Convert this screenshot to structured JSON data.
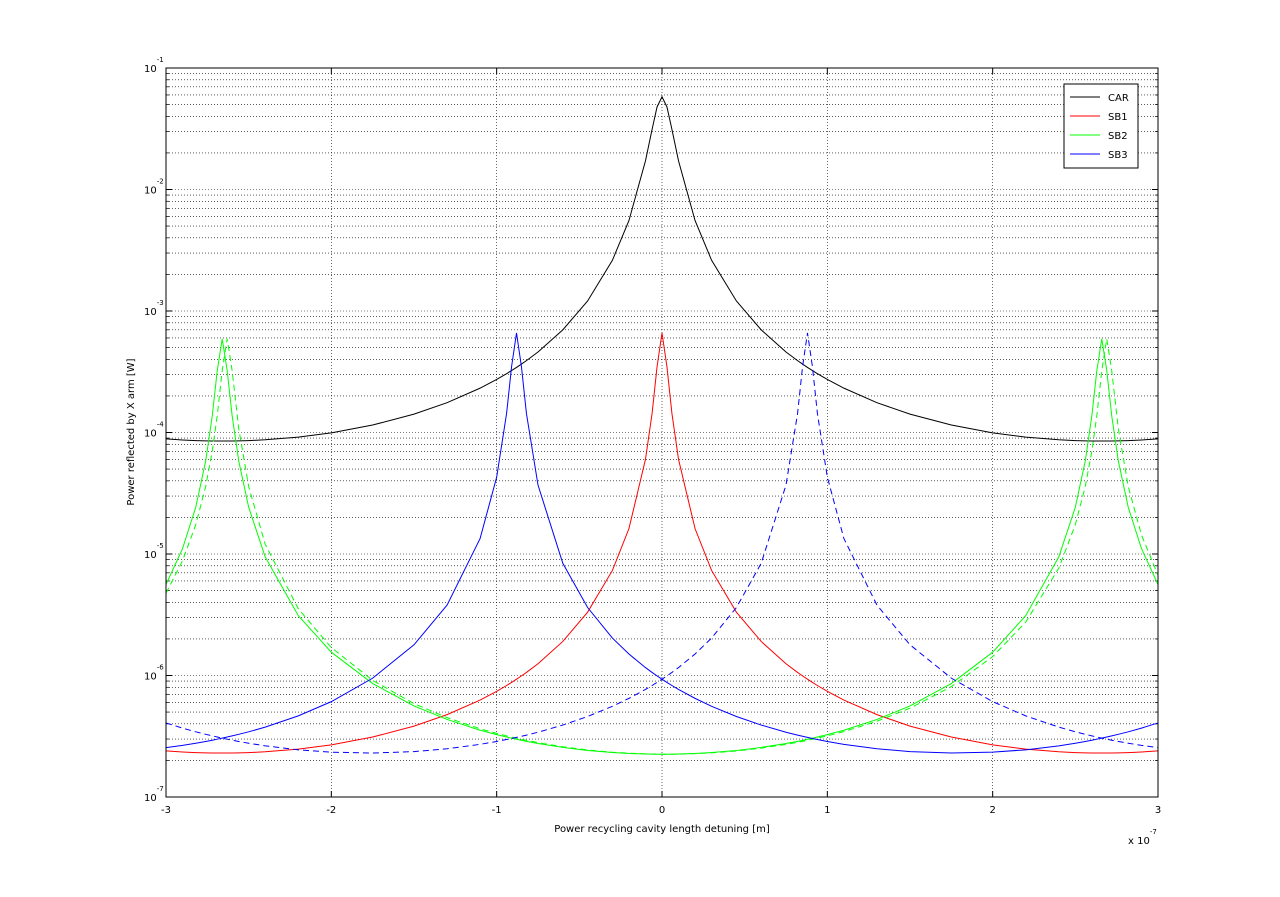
{
  "chart_data": {
    "type": "line",
    "xlabel": "Power recycling cavity length detuning [m]",
    "ylabel": "Power reflected by X arm [W]",
    "x_multiplier": {
      "base": "x 10",
      "exponent": "-7"
    },
    "x": [
      -3,
      -2.9,
      -2.82,
      -2.76,
      -2.72,
      -2.69,
      -2.66,
      -2.63,
      -2.6,
      -2.56,
      -2.5,
      -2.4,
      -2.2,
      -2,
      -1.75,
      -1.5,
      -1.3,
      -1.1,
      -1,
      -0.94,
      -0.91,
      -0.88,
      -0.85,
      -0.82,
      -0.75,
      -0.6,
      -0.45,
      -0.3,
      -0.2,
      -0.1,
      -0.06,
      -0.03,
      0,
      0.03,
      0.06,
      0.1,
      0.2,
      0.3,
      0.45,
      0.6,
      0.75,
      0.82,
      0.85,
      0.88,
      0.91,
      0.94,
      1,
      1.1,
      1.3,
      1.5,
      1.75,
      2,
      2.2,
      2.4,
      2.5,
      2.56,
      2.6,
      2.63,
      2.66,
      2.69,
      2.72,
      2.76,
      2.82,
      2.9,
      3
    ],
    "xlim": [
      -3,
      3
    ],
    "xticks": [
      -3,
      -2,
      -1,
      0,
      1,
      2,
      3
    ],
    "ylim": [
      1e-07,
      0.1
    ],
    "yscale": "log",
    "yticks": [
      {
        "value": 1e-07,
        "label": "10",
        "exponent": "-7"
      },
      {
        "value": 1e-06,
        "label": "10",
        "exponent": "-6"
      },
      {
        "value": 1e-05,
        "label": "10",
        "exponent": "-5"
      },
      {
        "value": 0.0001,
        "label": "10",
        "exponent": "-4"
      },
      {
        "value": 0.001,
        "label": "10",
        "exponent": "-3"
      },
      {
        "value": 0.01,
        "label": "10",
        "exponent": "-2"
      },
      {
        "value": 0.1,
        "label": "10",
        "exponent": "-1"
      }
    ],
    "yminorticks": [
      2e-07,
      3e-07,
      4e-07,
      5e-07,
      6e-07,
      7e-07,
      8e-07,
      9e-07,
      2e-06,
      3e-06,
      4e-06,
      5e-06,
      6e-06,
      7e-06,
      8e-06,
      9e-06,
      2e-05,
      3e-05,
      4e-05,
      5e-05,
      6e-05,
      7e-05,
      8e-05,
      9e-05,
      0.0002,
      0.0003,
      0.0004,
      0.0005,
      0.0006,
      0.0007,
      0.0008,
      0.0009,
      0.002,
      0.003,
      0.004,
      0.005,
      0.006,
      0.007,
      0.008,
      0.009,
      0.02,
      0.03,
      0.04,
      0.05,
      0.06,
      0.07,
      0.08,
      0.09
    ],
    "grid": true,
    "legend": "top-right",
    "series": [
      {
        "name": "CAR",
        "color": "#000000",
        "dash": false,
        "values": [
          8.856e-05,
          8.679e-05,
          8.581e-05,
          8.536e-05,
          8.517e-05,
          8.508e-05,
          8.504e-05,
          8.508e-05,
          8.517e-05,
          8.536e-05,
          8.581e-05,
          8.709e-05,
          9.158e-05,
          9.937e-05,
          0.0001152,
          0.0001416,
          0.000176,
          0.0002318,
          0.0002735,
          0.0003051,
          0.0003233,
          0.0003434,
          0.0003657,
          0.0003903,
          0.00046,
          0.0006995,
          0.001209,
          0.002616,
          0.005549,
          0.0172,
          0.03127,
          0.04778,
          0.058,
          0.04778,
          0.03127,
          0.0172,
          0.005549,
          0.002616,
          0.001209,
          0.0006995,
          0.00046,
          0.0003903,
          0.0003657,
          0.0003434,
          0.0003233,
          0.0003051,
          0.0002735,
          0.0002318,
          0.000176,
          0.0001416,
          0.0001152,
          9.937e-05,
          9.158e-05,
          8.709e-05,
          8.581e-05,
          8.536e-05,
          8.517e-05,
          8.508e-05,
          8.504e-05,
          8.508e-05,
          8.517e-05,
          8.536e-05,
          8.581e-05,
          8.679e-05,
          8.856e-05
        ]
      },
      {
        "name": "SB1",
        "color": "#ff0000",
        "dash": false,
        "values": [
          2.395e-07,
          2.347e-07,
          2.321e-07,
          2.308e-07,
          2.303e-07,
          2.301e-07,
          2.3e-07,
          2.301e-07,
          2.303e-07,
          2.308e-07,
          2.321e-07,
          2.355e-07,
          2.477e-07,
          2.688e-07,
          3.115e-07,
          3.833e-07,
          4.764e-07,
          6.281e-07,
          7.412e-07,
          8.274e-07,
          8.772e-07,
          9.319e-07,
          9.926e-07,
          1.06e-06,
          1.25e-06,
          1.907e-06,
          3.32e-06,
          7.32e-06,
          1.617e-05,
          6.005e-05,
          0.0001434,
          0.0003472,
          0.00066,
          0.0003472,
          0.0001434,
          6.005e-05,
          1.617e-05,
          7.32e-06,
          3.32e-06,
          1.907e-06,
          1.25e-06,
          1.06e-06,
          9.926e-07,
          9.319e-07,
          8.772e-07,
          8.274e-07,
          7.412e-07,
          6.281e-07,
          4.764e-07,
          3.833e-07,
          3.115e-07,
          2.688e-07,
          2.477e-07,
          2.355e-07,
          2.321e-07,
          2.308e-07,
          2.303e-07,
          2.301e-07,
          2.3e-07,
          2.301e-07,
          2.303e-07,
          2.308e-07,
          2.321e-07,
          2.347e-07,
          2.395e-07
        ]
      },
      {
        "name": "SB2",
        "color": "#00ff00",
        "dash": false,
        "values": [
          5.608e-06,
          1.108e-05,
          2.425e-05,
          5.825e-05,
          0.0001376,
          0.0003236,
          0.00059,
          0.0003236,
          0.0001376,
          5.825e-05,
          2.425e-05,
          9.473e-06,
          3.11e-06,
          1.555e-06,
          8.583e-07,
          5.618e-07,
          4.347e-07,
          3.545e-07,
          3.262e-07,
          3.116e-07,
          3.048e-07,
          2.987e-07,
          2.927e-07,
          2.871e-07,
          2.756e-07,
          2.558e-07,
          2.415e-07,
          2.323e-07,
          2.282e-07,
          2.258e-07,
          2.253e-07,
          2.251e-07,
          2.25e-07,
          2.251e-07,
          2.253e-07,
          2.258e-07,
          2.282e-07,
          2.323e-07,
          2.415e-07,
          2.558e-07,
          2.756e-07,
          2.871e-07,
          2.927e-07,
          2.987e-07,
          3.048e-07,
          3.116e-07,
          3.262e-07,
          3.545e-07,
          4.347e-07,
          5.618e-07,
          8.583e-07,
          1.555e-06,
          3.11e-06,
          9.473e-06,
          2.425e-05,
          5.825e-05,
          0.0001376,
          0.0003236,
          0.00059,
          0.0003236,
          0.0001376,
          5.825e-05,
          2.425e-05,
          1.108e-05,
          5.608e-06
        ]
      },
      {
        "color": "#00ff00",
        "dash": true,
        "values": [
          4.75e-06,
          8.803e-06,
          1.742e-05,
          3.595e-05,
          7.026e-05,
          0.0001376,
          0.0003236,
          0.00059,
          0.0003236,
          0.0001077,
          3.595e-05,
          1.203e-05,
          3.546e-06,
          1.699e-06,
          9.118e-07,
          5.872e-07,
          4.499e-07,
          3.644e-07,
          3.338e-07,
          3.188e-07,
          3.116e-07,
          3.048e-07,
          2.987e-07,
          2.927e-07,
          2.803e-07,
          2.593e-07,
          2.44e-07,
          2.338e-07,
          2.293e-07,
          2.264e-07,
          2.257e-07,
          2.253e-07,
          2.251e-07,
          2.25e-07,
          2.251e-07,
          2.254e-07,
          2.273e-07,
          2.308e-07,
          2.392e-07,
          2.525e-07,
          2.711e-07,
          2.819e-07,
          2.871e-07,
          2.927e-07,
          2.987e-07,
          3.048e-07,
          3.188e-07,
          3.453e-07,
          4.203e-07,
          5.383e-07,
          8.094e-07,
          1.43e-06,
          2.753e-06,
          7.651e-06,
          1.742e-05,
          3.595e-05,
          7.026e-05,
          0.0001376,
          0.0003236,
          0.00059,
          0.0003236,
          0.0001077,
          3.595e-05,
          1.436e-05,
          6.711e-06
        ]
      },
      {
        "name": "SB3",
        "color": "#0000ff",
        "dash": false,
        "values": [
          2.55e-07,
          2.662e-07,
          2.771e-07,
          2.865e-07,
          2.934e-07,
          2.991e-07,
          3.052e-07,
          3.115e-07,
          3.185e-07,
          3.28e-07,
          3.44e-07,
          3.76e-07,
          4.651e-07,
          6.093e-07,
          9.512e-07,
          1.79e-06,
          3.795e-06,
          1.343e-05,
          4.291e-05,
          0.0001434,
          0.0003472,
          0.00066,
          0.0003472,
          0.0001434,
          3.693e-05,
          8.384e-06,
          3.626e-06,
          2.033e-06,
          1.503e-06,
          1.162e-06,
          1.06e-06,
          9.926e-07,
          9.319e-07,
          8.772e-07,
          8.274e-07,
          7.683e-07,
          6.483e-07,
          5.58e-07,
          4.598e-07,
          3.909e-07,
          3.412e-07,
          3.231e-07,
          3.162e-07,
          3.094e-07,
          3.032e-07,
          2.973e-07,
          2.865e-07,
          2.713e-07,
          2.494e-07,
          2.364e-07,
          2.301e-07,
          2.339e-07,
          2.445e-07,
          2.638e-07,
          2.771e-07,
          2.865e-07,
          2.934e-07,
          2.991e-07,
          3.052e-07,
          3.115e-07,
          3.185e-07,
          3.28e-07,
          3.44e-07,
          3.689e-07,
          4.071e-07
        ]
      },
      {
        "color": "#0000ff",
        "dash": true,
        "values": [
          4.071e-07,
          3.689e-07,
          3.44e-07,
          3.28e-07,
          3.185e-07,
          3.115e-07,
          3.052e-07,
          2.991e-07,
          2.934e-07,
          2.865e-07,
          2.771e-07,
          2.638e-07,
          2.445e-07,
          2.339e-07,
          2.301e-07,
          2.364e-07,
          2.494e-07,
          2.713e-07,
          2.865e-07,
          2.973e-07,
          3.032e-07,
          3.094e-07,
          3.162e-07,
          3.231e-07,
          3.412e-07,
          3.909e-07,
          4.598e-07,
          5.58e-07,
          6.483e-07,
          7.683e-07,
          8.274e-07,
          8.772e-07,
          9.319e-07,
          9.926e-07,
          1.06e-06,
          1.162e-06,
          1.503e-06,
          2.033e-06,
          3.626e-06,
          8.384e-06,
          3.693e-05,
          0.0001434,
          0.0003472,
          0.00066,
          0.0003472,
          0.0001434,
          4.291e-05,
          1.343e-05,
          3.795e-06,
          1.79e-06,
          9.512e-07,
          6.093e-07,
          4.651e-07,
          3.76e-07,
          3.44e-07,
          3.28e-07,
          3.185e-07,
          3.115e-07,
          3.052e-07,
          2.991e-07,
          2.934e-07,
          2.865e-07,
          2.771e-07,
          2.662e-07,
          2.55e-07
        ]
      }
    ]
  }
}
